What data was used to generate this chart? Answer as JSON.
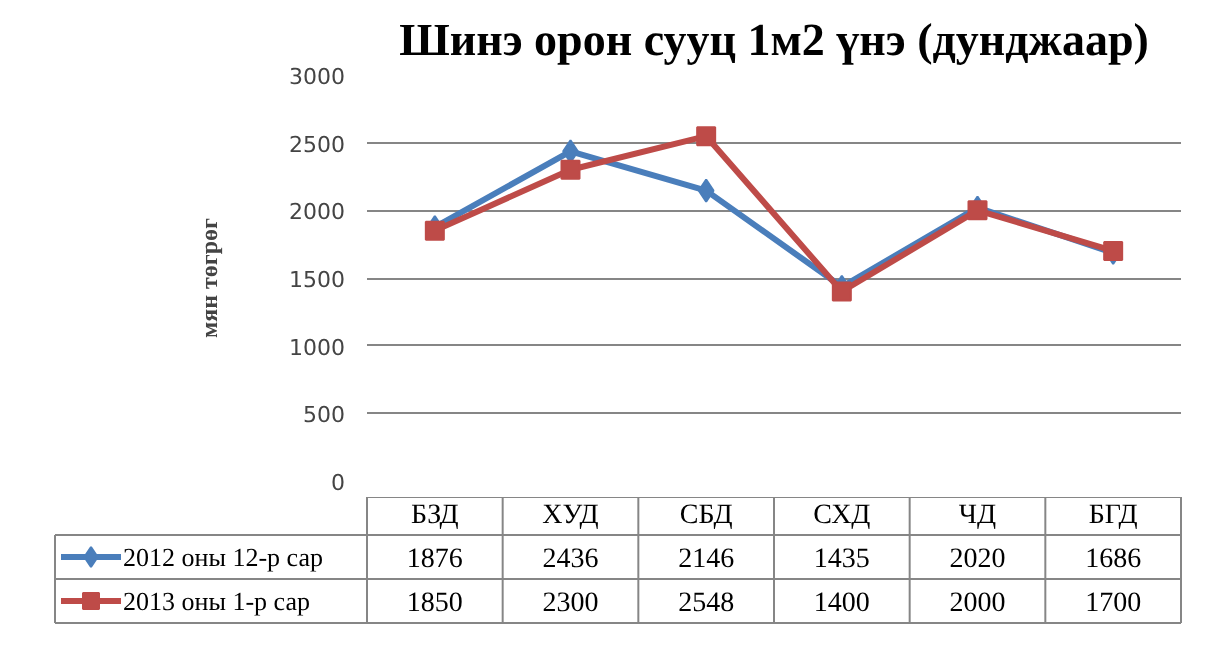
{
  "chart_data": {
    "type": "line",
    "title": "Шинэ орон сууц 1м2 үнэ (дунджаар)",
    "ylabel": "мян төгрөг",
    "categories": [
      "БЗД",
      "ХУД",
      "СБД",
      "СХД",
      "ЧД",
      "БГД"
    ],
    "series": [
      {
        "name": "2012 оны  12-р сар",
        "color": "#4a7ebb",
        "marker": "diamond",
        "values": [
          1876,
          2436,
          2146,
          1435,
          2020,
          1686
        ]
      },
      {
        "name": "2013 оны 1-р сар",
        "color": "#be4b48",
        "marker": "square",
        "values": [
          1850,
          2300,
          2548,
          1400,
          2000,
          1700
        ]
      }
    ],
    "ylim": [
      0,
      3000
    ],
    "yticks": [
      0,
      500,
      1000,
      1500,
      2000,
      2500,
      3000
    ],
    "grid": "y",
    "legend": "bottom",
    "data_labels": true
  }
}
